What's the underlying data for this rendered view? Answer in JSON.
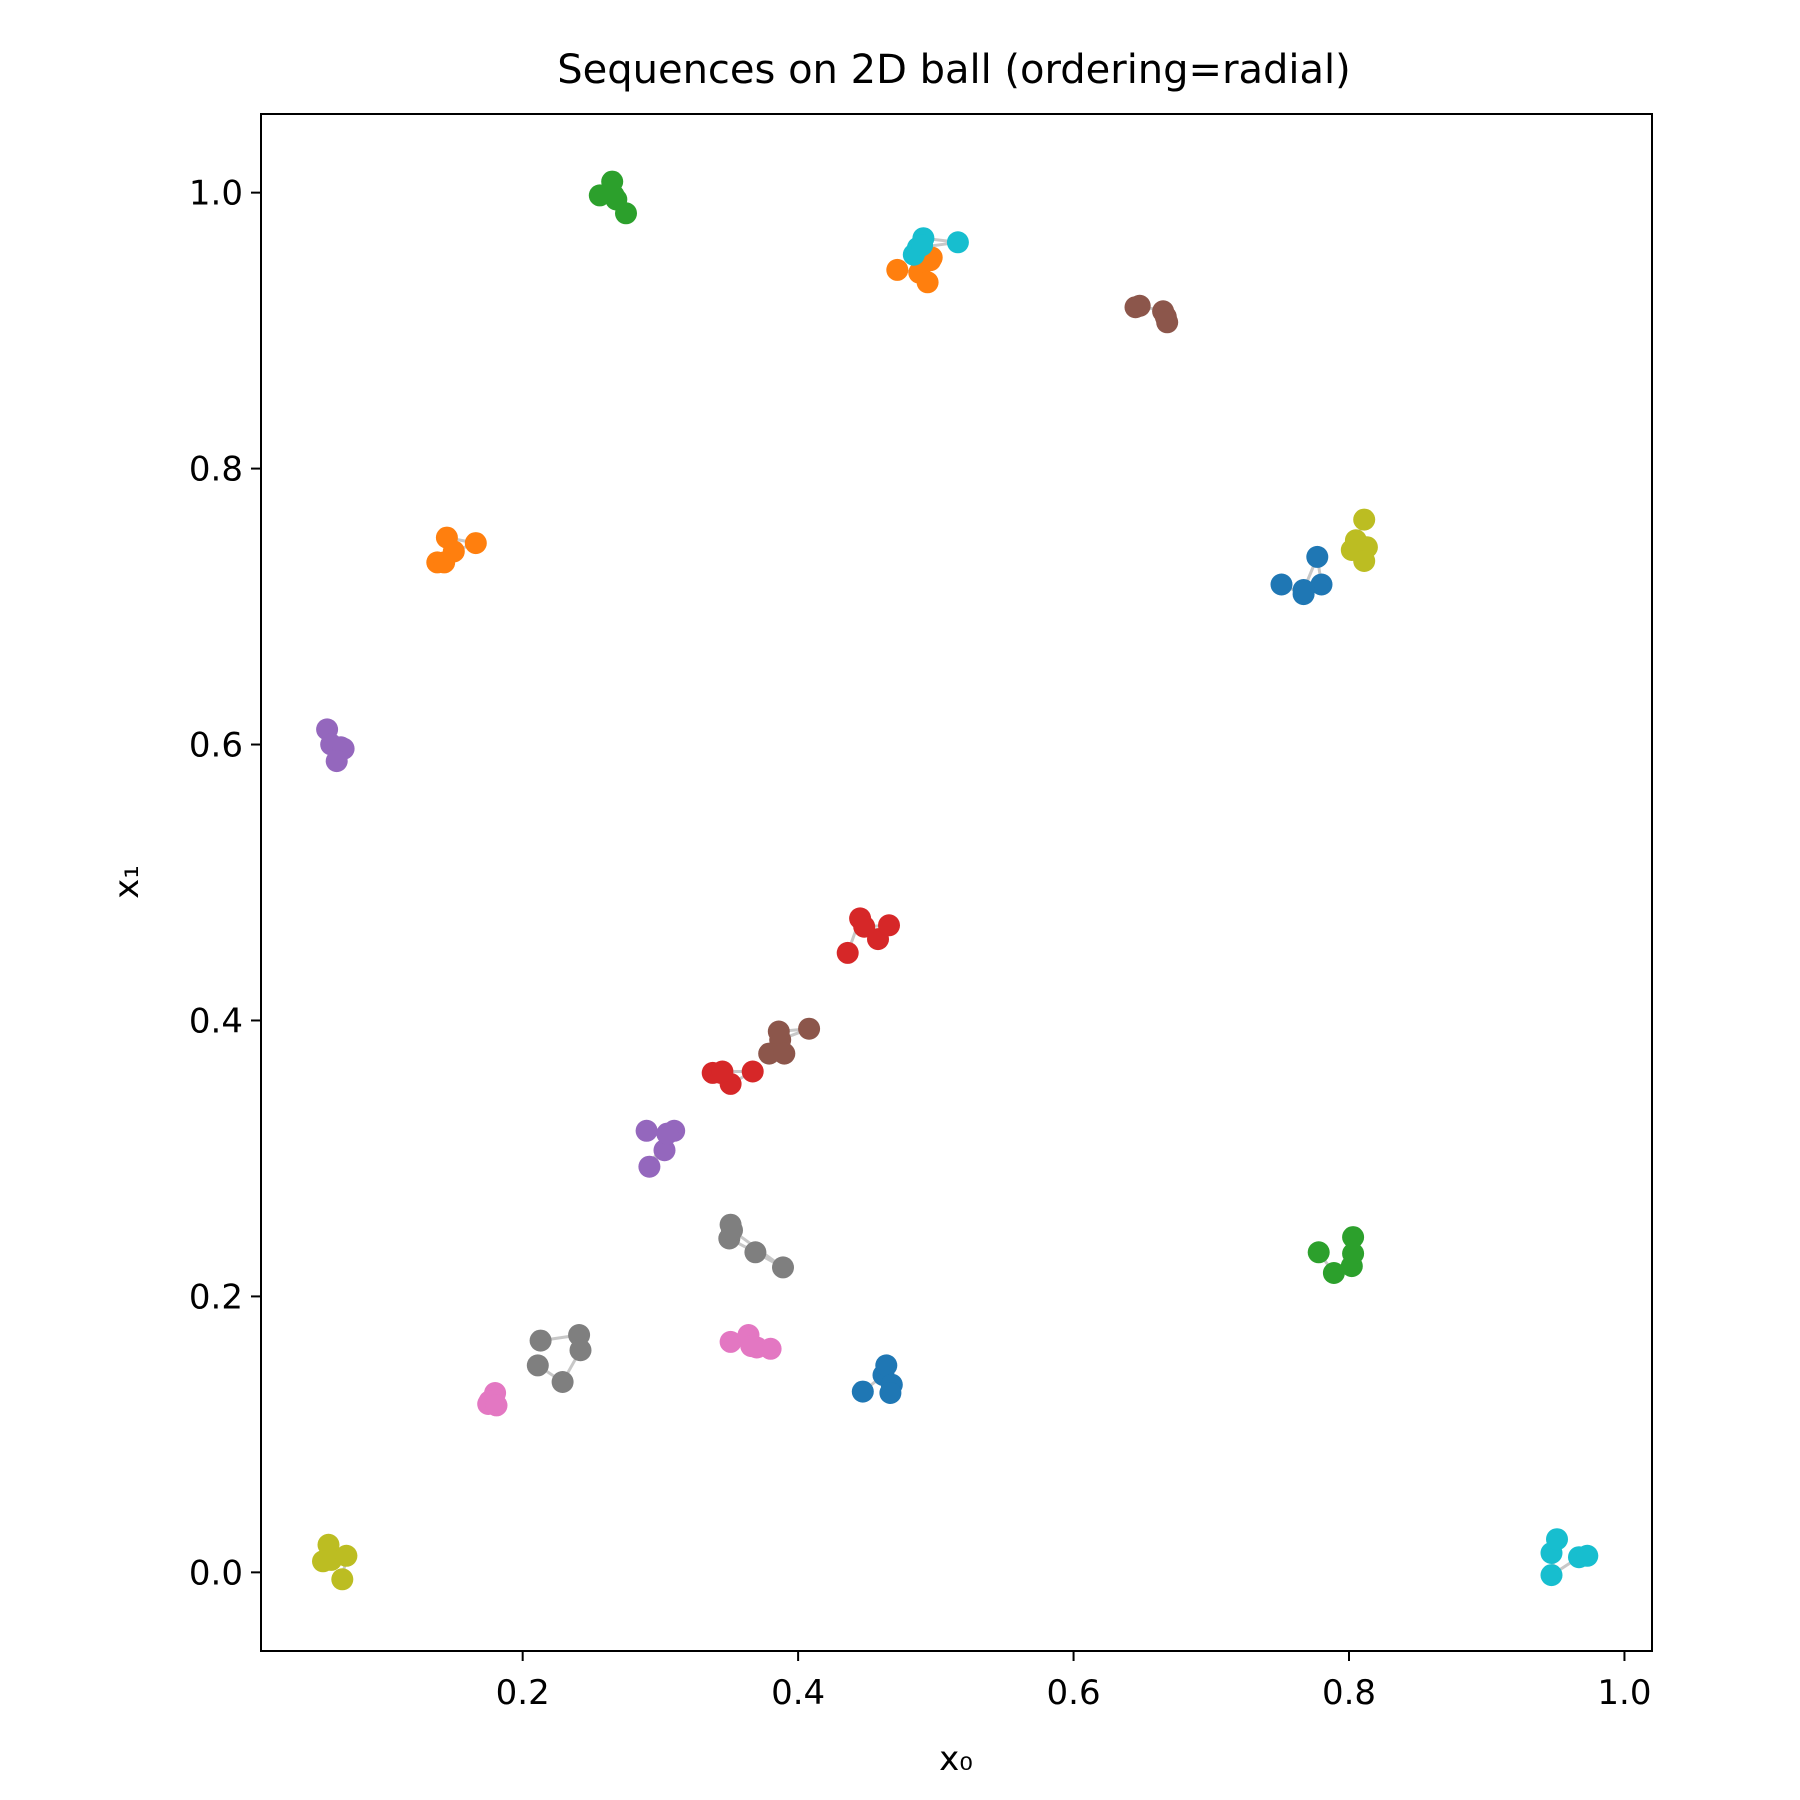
{
  "chart_data": {
    "type": "scatter",
    "title": "Sequences on 2D ball (ordering=radial)",
    "xlabel": "x₀",
    "ylabel": "x₁",
    "xlim": [
      0.01,
      1.02
    ],
    "ylim": [
      -0.057,
      1.057
    ],
    "xticks": [
      0.2,
      0.4,
      0.6,
      0.8,
      1.0
    ],
    "yticks": [
      0.0,
      0.2,
      0.4,
      0.6,
      0.8,
      1.0
    ],
    "xtick_labels": [
      "0.2",
      "0.4",
      "0.6",
      "0.8",
      "1.0"
    ],
    "ytick_labels": [
      "0.0",
      "0.2",
      "0.4",
      "0.6",
      "0.8",
      "1.0"
    ],
    "grid": false,
    "legend": false,
    "series": [
      {
        "color": "#1f77b4",
        "x": [
          0.751,
          0.767,
          0.78,
          0.777,
          0.767
        ],
        "y": [
          0.716,
          0.709,
          0.716,
          0.736,
          0.712
        ]
      },
      {
        "color": "#ff7f0e",
        "x": [
          0.145,
          0.166,
          0.15,
          0.138,
          0.143
        ],
        "y": [
          0.75,
          0.746,
          0.74,
          0.732,
          0.732
        ]
      },
      {
        "color": "#2ca02c",
        "x": [
          0.256,
          0.265,
          0.266,
          0.275,
          0.268
        ],
        "y": [
          0.998,
          1.008,
          0.998,
          0.985,
          0.995
        ]
      },
      {
        "color": "#d62728",
        "x": [
          0.436,
          0.445,
          0.458,
          0.466,
          0.448
        ],
        "y": [
          0.449,
          0.474,
          0.459,
          0.469,
          0.468
        ]
      },
      {
        "color": "#9467bd",
        "x": [
          0.058,
          0.068,
          0.061,
          0.07,
          0.065
        ],
        "y": [
          0.611,
          0.598,
          0.6,
          0.597,
          0.588
        ]
      },
      {
        "color": "#8c564b",
        "x": [
          0.645,
          0.648,
          0.665,
          0.667,
          0.668
        ],
        "y": [
          0.917,
          0.918,
          0.914,
          0.91,
          0.906
        ]
      },
      {
        "color": "#e377c2",
        "x": [
          0.179,
          0.18,
          0.175,
          0.176,
          0.181
        ],
        "y": [
          0.125,
          0.13,
          0.122,
          0.124,
          0.121
        ]
      },
      {
        "color": "#7f7f7f",
        "x": [
          0.213,
          0.241,
          0.242,
          0.229,
          0.211
        ],
        "y": [
          0.168,
          0.172,
          0.161,
          0.138,
          0.15
        ]
      },
      {
        "color": "#bcbd22",
        "x": [
          0.059,
          0.055,
          0.061,
          0.072,
          0.069
        ],
        "y": [
          0.02,
          0.008,
          0.009,
          0.012,
          -0.005
        ]
      },
      {
        "color": "#17becf",
        "x": [
          0.947,
          0.951,
          0.947,
          0.967,
          0.973
        ],
        "y": [
          0.014,
          0.024,
          -0.002,
          0.011,
          0.012
        ]
      },
      {
        "color": "#1f77b4",
        "x": [
          0.447,
          0.462,
          0.464,
          0.468,
          0.467
        ],
        "y": [
          0.131,
          0.143,
          0.15,
          0.136,
          0.13
        ]
      },
      {
        "color": "#ff7f0e",
        "x": [
          0.472,
          0.488,
          0.497,
          0.496,
          0.494
        ],
        "y": [
          0.944,
          0.942,
          0.953,
          0.951,
          0.935
        ]
      },
      {
        "color": "#2ca02c",
        "x": [
          0.778,
          0.789,
          0.802,
          0.803,
          0.803
        ],
        "y": [
          0.232,
          0.217,
          0.222,
          0.231,
          0.243
        ]
      },
      {
        "color": "#d62728",
        "x": [
          0.338,
          0.344,
          0.351,
          0.367,
          0.345
        ],
        "y": [
          0.362,
          0.362,
          0.354,
          0.363,
          0.363
        ]
      },
      {
        "color": "#9467bd",
        "x": [
          0.29,
          0.31,
          0.303,
          0.292,
          0.305
        ],
        "y": [
          0.32,
          0.32,
          0.306,
          0.294,
          0.318
        ]
      },
      {
        "color": "#8c564b",
        "x": [
          0.386,
          0.408,
          0.387,
          0.379,
          0.39
        ],
        "y": [
          0.392,
          0.394,
          0.386,
          0.376,
          0.376
        ]
      },
      {
        "color": "#e377c2",
        "x": [
          0.351,
          0.364,
          0.37,
          0.38,
          0.366
        ],
        "y": [
          0.167,
          0.172,
          0.163,
          0.162,
          0.164
        ]
      },
      {
        "color": "#7f7f7f",
        "x": [
          0.351,
          0.35,
          0.369,
          0.389,
          0.352
        ],
        "y": [
          0.252,
          0.242,
          0.232,
          0.221,
          0.248
        ]
      },
      {
        "color": "#bcbd22",
        "x": [
          0.811,
          0.805,
          0.802,
          0.813,
          0.811
        ],
        "y": [
          0.763,
          0.748,
          0.741,
          0.743,
          0.733
        ]
      },
      {
        "color": "#17becf",
        "x": [
          0.491,
          0.516,
          0.487,
          0.484,
          0.49
        ],
        "y": [
          0.967,
          0.964,
          0.96,
          0.955,
          0.962
        ]
      }
    ]
  }
}
